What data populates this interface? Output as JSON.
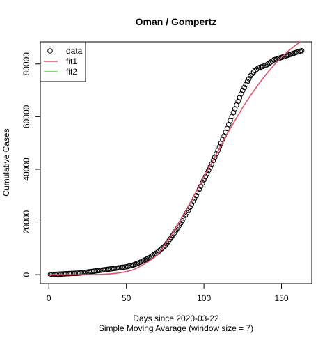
{
  "chart_data": {
    "type": "scatter",
    "title": "Oman / Gompertz",
    "xlabel": "Days since 2020-03-22",
    "subtitle": "Simple Moving Avarage (window size = 7)",
    "ylabel": "Cumulative Cases",
    "xlim": [
      -5.5,
      169.5
    ],
    "ylim": [
      -3400,
      88400
    ],
    "xticks": [
      0,
      50,
      100,
      150
    ],
    "yticks": [
      0,
      20000,
      40000,
      60000,
      80000
    ],
    "legend": "top-left",
    "series": [
      {
        "name": "data",
        "color": "#000000",
        "type": "scatter",
        "x": [
          1,
          2,
          3,
          4,
          5,
          6,
          7,
          8,
          9,
          10,
          11,
          12,
          13,
          14,
          15,
          16,
          17,
          18,
          19,
          20,
          21,
          22,
          23,
          24,
          25,
          26,
          27,
          28,
          29,
          30,
          31,
          32,
          33,
          34,
          35,
          36,
          37,
          38,
          39,
          40,
          41,
          42,
          43,
          44,
          45,
          46,
          47,
          48,
          49,
          50,
          51,
          52,
          53,
          54,
          55,
          56,
          57,
          58,
          59,
          60,
          61,
          62,
          63,
          64,
          65,
          66,
          67,
          68,
          69,
          70,
          71,
          72,
          73,
          74,
          75,
          76,
          77,
          78,
          79,
          80,
          81,
          82,
          83,
          84,
          85,
          86,
          87,
          88,
          89,
          90,
          91,
          92,
          93,
          94,
          95,
          96,
          97,
          98,
          99,
          100,
          101,
          102,
          103,
          104,
          105,
          106,
          107,
          108,
          109,
          110,
          111,
          112,
          113,
          114,
          115,
          116,
          117,
          118,
          119,
          120,
          121,
          122,
          123,
          124,
          125,
          126,
          127,
          128,
          129,
          130,
          131,
          132,
          133,
          134,
          135,
          136,
          137,
          138,
          139,
          140,
          141,
          142,
          143,
          144,
          145,
          146,
          147,
          148,
          149,
          150,
          151,
          152,
          153,
          154,
          155,
          156,
          157,
          158,
          159,
          160,
          161,
          162,
          163
        ],
        "values": [
          50,
          80,
          110,
          140,
          170,
          200,
          230,
          260,
          290,
          320,
          350,
          380,
          410,
          440,
          470,
          500,
          530,
          560,
          580,
          600,
          680,
          760,
          840,
          920,
          1000,
          1080,
          1160,
          1240,
          1320,
          1400,
          1480,
          1560,
          1640,
          1720,
          1800,
          1880,
          1960,
          2040,
          2120,
          2200,
          2280,
          2360,
          2440,
          2520,
          2600,
          2680,
          2760,
          2840,
          2920,
          3000,
          3160,
          3320,
          3480,
          3640,
          3800,
          4040,
          4280,
          4520,
          4760,
          5000,
          5300,
          5600,
          5900,
          6200,
          6500,
          6900,
          7300,
          7700,
          8100,
          8500,
          9000,
          9500,
          10000,
          10500,
          11000,
          11800,
          12600,
          13400,
          14200,
          15000,
          15900,
          16800,
          17700,
          18600,
          19500,
          20500,
          21500,
          22500,
          23500,
          24500,
          25600,
          26700,
          27800,
          28900,
          30000,
          31200,
          32400,
          33600,
          34800,
          36000,
          37200,
          38400,
          39600,
          40800,
          42000,
          43300,
          44600,
          45900,
          47200,
          48500,
          49900,
          51300,
          52700,
          54100,
          55500,
          57000,
          58500,
          60000,
          61500,
          63000,
          64400,
          65800,
          67200,
          68600,
          70000,
          71100,
          72200,
          73300,
          74400,
          75500,
          76200,
          76900,
          77500,
          78000,
          78500,
          78700,
          78900,
          79100,
          79300,
          79500,
          79900,
          80300,
          80700,
          81100,
          81500,
          81700,
          81900,
          82100,
          82300,
          82500,
          82700,
          82900,
          83100,
          83300,
          83500,
          83700,
          83900,
          84100,
          84300,
          84500,
          84700,
          84850,
          85000
        ]
      },
      {
        "name": "fit1",
        "color": "#df536b",
        "type": "line",
        "x": [
          0,
          5,
          10,
          15,
          20,
          25,
          30,
          35,
          40,
          45,
          50,
          55,
          60,
          65,
          70,
          75,
          80,
          85,
          90,
          95,
          100,
          105,
          110,
          115,
          120,
          125,
          130,
          135,
          140,
          145,
          150,
          155,
          160,
          165
        ],
        "values": [
          0,
          0,
          0,
          0,
          5,
          20,
          60,
          150,
          330,
          650,
          1150,
          2000,
          3500,
          5300,
          7500,
          11500,
          16000,
          21000,
          26000,
          31500,
          37000,
          42500,
          48000,
          53500,
          58500,
          63500,
          68000,
          72200,
          76000,
          79500,
          82500,
          85200,
          87500,
          89500
        ]
      },
      {
        "name": "fit2",
        "color": "#61d04f",
        "type": "line",
        "x": [
          0,
          5,
          10,
          15,
          20,
          25,
          30,
          35,
          40,
          45,
          50,
          55,
          60,
          65,
          70,
          75,
          80,
          85,
          90,
          95,
          100,
          105,
          110,
          115,
          120,
          125,
          130,
          135,
          140,
          145,
          150,
          155,
          160,
          165
        ],
        "values": [
          null,
          null,
          null,
          null,
          null,
          null,
          null,
          null,
          null,
          null,
          null,
          null,
          null,
          null,
          null,
          null,
          null,
          null,
          null,
          null,
          null,
          null,
          null,
          null,
          null,
          null,
          null,
          null,
          null,
          null,
          null,
          null,
          null,
          null
        ]
      }
    ]
  }
}
